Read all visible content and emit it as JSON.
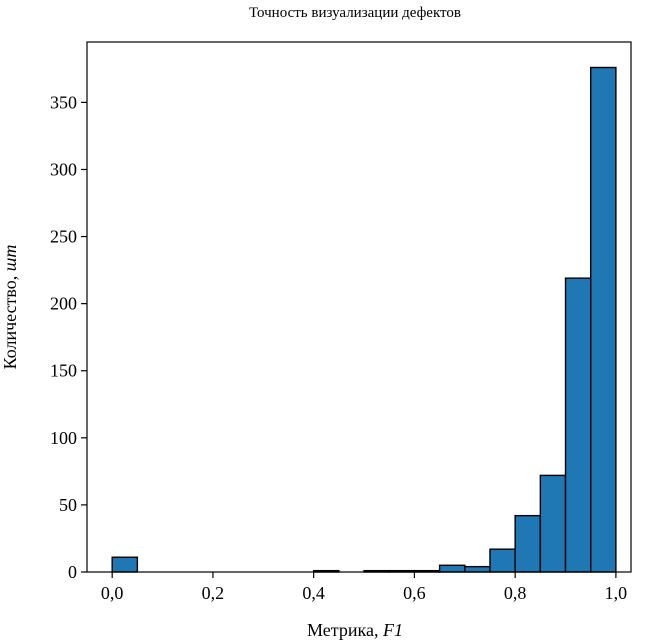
{
  "chart_data": {
    "type": "bar",
    "title": "Точность визуализации дефектов",
    "xlabel_main": "Метрика, ",
    "xlabel_italic": "F1",
    "ylabel_main": "Количество, ",
    "ylabel_italic": "шт",
    "xlim": [
      -0.05,
      1.03
    ],
    "ylim": [
      0,
      395
    ],
    "bin_width": 0.05,
    "bins": [
      {
        "x0": 0.0,
        "value": 11
      },
      {
        "x0": 0.4,
        "value": 1
      },
      {
        "x0": 0.5,
        "value": 1
      },
      {
        "x0": 0.55,
        "value": 1
      },
      {
        "x0": 0.6,
        "value": 1
      },
      {
        "x0": 0.65,
        "value": 5
      },
      {
        "x0": 0.7,
        "value": 4
      },
      {
        "x0": 0.75,
        "value": 17
      },
      {
        "x0": 0.8,
        "value": 42
      },
      {
        "x0": 0.85,
        "value": 72
      },
      {
        "x0": 0.9,
        "value": 219
      },
      {
        "x0": 0.95,
        "value": 376
      }
    ],
    "x_ticks": [
      {
        "value": 0.0,
        "label": "0,0"
      },
      {
        "value": 0.2,
        "label": "0,2"
      },
      {
        "value": 0.4,
        "label": "0,4"
      },
      {
        "value": 0.6,
        "label": "0,6"
      },
      {
        "value": 0.8,
        "label": "0,8"
      },
      {
        "value": 1.0,
        "label": "1,0"
      }
    ],
    "y_ticks": [
      {
        "value": 0,
        "label": "0"
      },
      {
        "value": 50,
        "label": "50"
      },
      {
        "value": 100,
        "label": "100"
      },
      {
        "value": 150,
        "label": "150"
      },
      {
        "value": 200,
        "label": "200"
      },
      {
        "value": 250,
        "label": "250"
      },
      {
        "value": 300,
        "label": "300"
      },
      {
        "value": 350,
        "label": "350"
      }
    ],
    "bar_color": "#1f77b4",
    "grid": false,
    "legend": "none"
  }
}
